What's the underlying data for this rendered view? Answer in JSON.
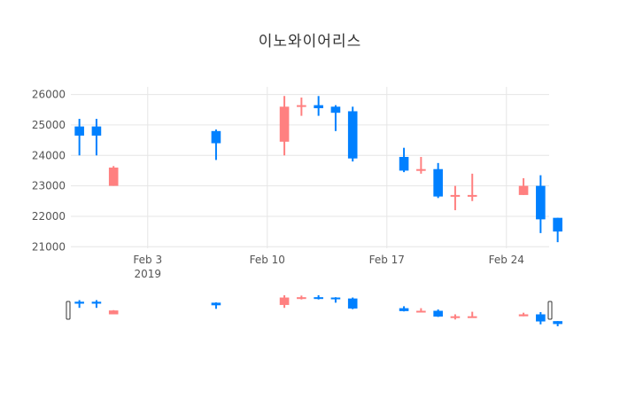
{
  "page": {
    "title": "이노와이어리스"
  },
  "chart_data": {
    "type": "candlestick",
    "title": "이노와이어리스",
    "xlabel": "",
    "ylabel": "",
    "ylim": [
      20950,
      26250
    ],
    "x_tick_labels": [
      "Feb 3",
      "Feb 10",
      "Feb 17",
      "Feb 24"
    ],
    "x_tick_dates": [
      "2019-02-03",
      "2019-02-10",
      "2019-02-17",
      "2019-02-24"
    ],
    "x_year_label": "2019",
    "y_ticks": [
      21000,
      22000,
      23000,
      24000,
      25000,
      26000
    ],
    "y_tick_labels": [
      "21000",
      "22000",
      "23000",
      "24000",
      "25000",
      "26000"
    ],
    "xlim": [
      "2019-01-29T12:00",
      "2019-02-26T12:00"
    ],
    "grid": true,
    "increasing_color": "#ff8080",
    "decreasing_color": "#0080ff",
    "rangeslider": true,
    "candles": [
      {
        "date": "2019-01-30",
        "open": 24950,
        "high": 25200,
        "low": 24000,
        "close": 24650
      },
      {
        "date": "2019-01-31",
        "open": 24950,
        "high": 25200,
        "low": 24000,
        "close": 24650
      },
      {
        "date": "2019-02-01",
        "open": 23000,
        "high": 23650,
        "low": 23000,
        "close": 23600
      },
      {
        "date": "2019-02-07",
        "open": 24800,
        "high": 24850,
        "low": 23850,
        "close": 24400
      },
      {
        "date": "2019-02-11",
        "open": 24450,
        "high": 25950,
        "low": 24000,
        "close": 25600
      },
      {
        "date": "2019-02-12",
        "open": 25600,
        "high": 25900,
        "low": 25300,
        "close": 25650
      },
      {
        "date": "2019-02-13",
        "open": 25650,
        "high": 25950,
        "low": 25300,
        "close": 25550
      },
      {
        "date": "2019-02-14",
        "open": 25600,
        "high": 25650,
        "low": 24800,
        "close": 25400
      },
      {
        "date": "2019-02-15",
        "open": 25450,
        "high": 25600,
        "low": 23800,
        "close": 23900
      },
      {
        "date": "2019-02-18",
        "open": 23950,
        "high": 24250,
        "low": 23450,
        "close": 23500
      },
      {
        "date": "2019-02-19",
        "open": 23500,
        "high": 23950,
        "low": 23400,
        "close": 23550
      },
      {
        "date": "2019-02-20",
        "open": 23550,
        "high": 23750,
        "low": 22600,
        "close": 22650
      },
      {
        "date": "2019-02-21",
        "open": 22650,
        "high": 23000,
        "low": 22200,
        "close": 22700
      },
      {
        "date": "2019-02-22",
        "open": 22650,
        "high": 23400,
        "low": 22500,
        "close": 22700
      },
      {
        "date": "2019-02-25",
        "open": 22700,
        "high": 23250,
        "low": 22700,
        "close": 23000
      },
      {
        "date": "2019-02-26",
        "open": 23000,
        "high": 23350,
        "low": 21450,
        "close": 21900
      },
      {
        "date": "2019-02-27",
        "open": 21950,
        "high": 21950,
        "low": 21150,
        "close": 21500
      }
    ]
  }
}
